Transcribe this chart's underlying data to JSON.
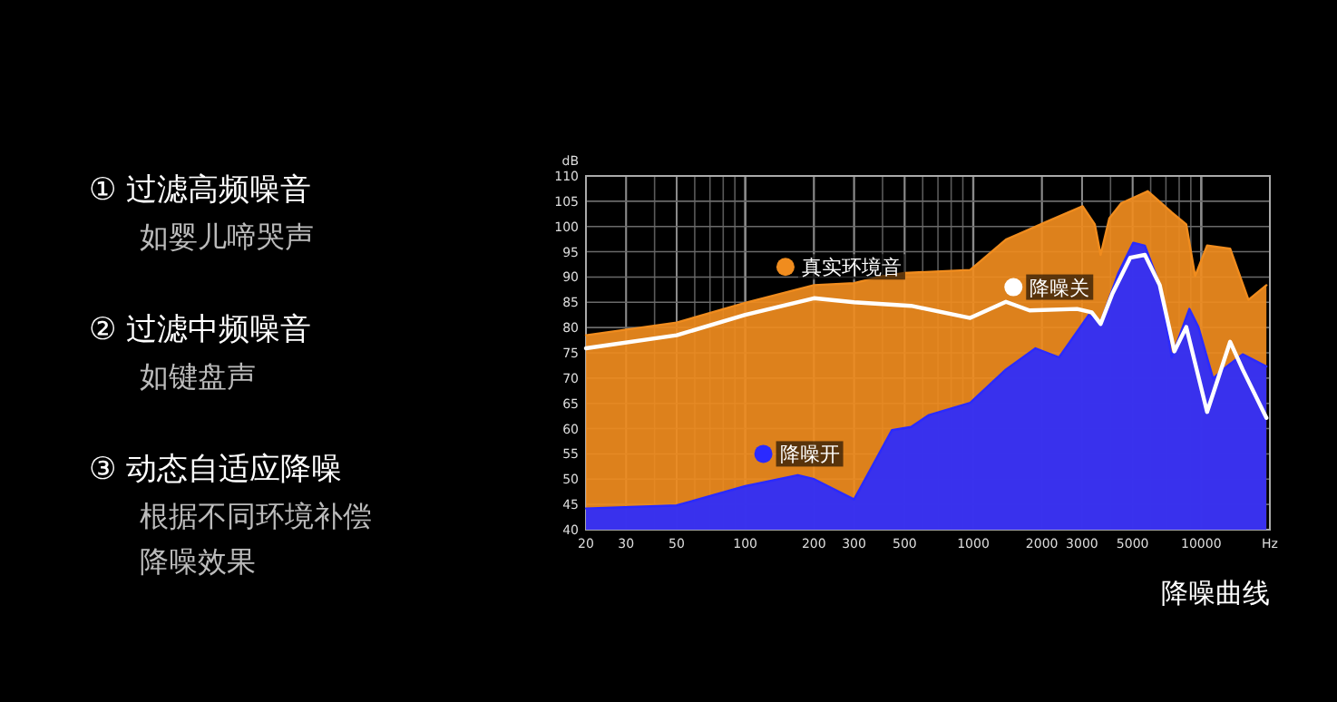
{
  "chart_data": {
    "type": "area",
    "log": "x",
    "ylabel": "dB",
    "xlim": [
      20,
      20000
    ],
    "ylim": [
      40,
      110
    ],
    "xticks": [
      20,
      30,
      50,
      100,
      200,
      300,
      500,
      1000,
      2000,
      3000,
      5000,
      10000,
      {
        "value": 20000,
        "label": "Hz"
      }
    ],
    "yticks": [
      40,
      45,
      50,
      55,
      60,
      65,
      70,
      75,
      80,
      85,
      90,
      95,
      100,
      105,
      110
    ],
    "grid": true,
    "legend": "left",
    "series": [
      {
        "name": "真实环境音",
        "color": "#f08c1e",
        "x": [
          20,
          50,
          100,
          200,
          300,
          400,
          500,
          970,
          1390,
          2110,
          3020,
          3410,
          3620,
          3950,
          4460,
          5830,
          7420,
          8600,
          9400,
          10600,
          13400,
          16100,
          19300
        ],
        "values": [
          78.5,
          81,
          84.9,
          88.4,
          88.8,
          90.2,
          90.8,
          91.4,
          97.4,
          101,
          104,
          100.4,
          94.4,
          101.6,
          104.6,
          107,
          102.8,
          100.4,
          90.2,
          96.2,
          95.6,
          85.5,
          88.4
        ]
      },
      {
        "name": "降噪开",
        "type": "area",
        "color": "#2a2aff",
        "x": [
          20,
          50,
          100,
          170,
          200,
          300,
          440,
          533,
          639,
          970,
          1390,
          1873,
          2380,
          3210,
          3620,
          4330,
          5030,
          5660,
          6580,
          7420,
          8870,
          9710,
          11280,
          12980,
          15200,
          19300
        ],
        "values": [
          44.2,
          44.8,
          48.6,
          50.8,
          50,
          46,
          59.7,
          60.3,
          62.7,
          65.1,
          71.7,
          75.9,
          74.1,
          82.5,
          81,
          90.8,
          96.8,
          96.2,
          88.4,
          74.1,
          83.7,
          80.1,
          69.9,
          72.3,
          74.7,
          72.3
        ]
      },
      {
        "name": "降噪关",
        "type": "line",
        "color": "#ffffff",
        "x": [
          20,
          50,
          100,
          200,
          300,
          533,
          970,
          1390,
          1765,
          2850,
          3310,
          3620,
          4080,
          4880,
          5660,
          6580,
          7630,
          8600,
          9400,
          10600,
          13400,
          15200,
          19300
        ],
        "values": [
          75.9,
          78.5,
          82.5,
          85.8,
          85,
          84.3,
          81.9,
          85.1,
          83.4,
          83.7,
          83,
          80.7,
          86.7,
          93.8,
          94.4,
          88.4,
          75.3,
          80.1,
          72.9,
          63.3,
          77.2,
          71.7,
          62.1
        ]
      }
    ],
    "annotations": [
      "① 过滤高频噪音",
      "如婴儿啼哭声",
      "② 过滤中频噪音",
      "如键盘声",
      "③ 动态自适应降噪",
      "根据不同环境补偿",
      "降噪效果",
      "降噪曲线"
    ]
  }
}
